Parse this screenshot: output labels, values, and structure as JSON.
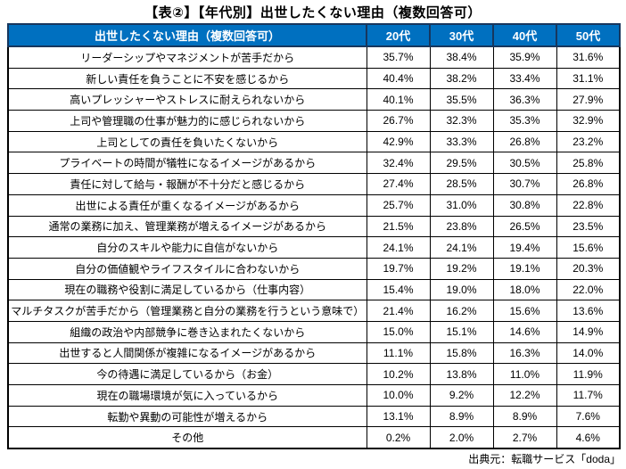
{
  "title": "【表②】【年代別】出世したくない理由（複数回答可）",
  "source": "出典元：転職サービス「doda」",
  "colors": {
    "header_bg": "#0070C0",
    "header_border": "#17375E",
    "header_text": "#FFFFFF",
    "body_border": "#000000",
    "body_text": "#000000"
  },
  "chart_data": {
    "type": "table",
    "title": "【表②】【年代別】出世したくない理由（複数回答可）",
    "header": [
      "出世したくない理由（複数回答可）",
      "20代",
      "30代",
      "40代",
      "50代"
    ],
    "rows": [
      [
        "リーダーシップやマネジメントが苦手だから",
        "35.7%",
        "38.4%",
        "35.9%",
        "31.6%"
      ],
      [
        "新しい責任を負うことに不安を感じるから",
        "40.4%",
        "38.2%",
        "33.4%",
        "31.1%"
      ],
      [
        "高いプレッシャーやストレスに耐えられないから",
        "40.1%",
        "35.5%",
        "36.3%",
        "27.9%"
      ],
      [
        "上司や管理職の仕事が魅力的に感じられないから",
        "26.7%",
        "32.3%",
        "35.3%",
        "32.9%"
      ],
      [
        "上司としての責任を負いたくないから",
        "42.9%",
        "33.3%",
        "26.8%",
        "23.2%"
      ],
      [
        "プライベートの時間が犠牲になるイメージがあるから",
        "32.4%",
        "29.5%",
        "30.5%",
        "25.8%"
      ],
      [
        "責任に対して給与・報酬が不十分だと感じるから",
        "27.4%",
        "28.5%",
        "30.7%",
        "26.8%"
      ],
      [
        "出世による責任が重くなるイメージがあるから",
        "25.7%",
        "31.0%",
        "30.8%",
        "22.8%"
      ],
      [
        "通常の業務に加え、管理業務が増えるイメージがあるから",
        "21.5%",
        "23.8%",
        "26.5%",
        "23.5%"
      ],
      [
        "自分のスキルや能力に自信がないから",
        "24.1%",
        "24.1%",
        "19.4%",
        "15.6%"
      ],
      [
        "自分の価値観やライフスタイルに合わないから",
        "19.7%",
        "19.2%",
        "19.1%",
        "20.3%"
      ],
      [
        "現在の職務や役割に満足しているから（仕事内容）",
        "15.4%",
        "19.0%",
        "18.0%",
        "22.0%"
      ],
      [
        "マルチタスクが苦手だから（管理業務と自分の業務を行うという意味で）",
        "21.4%",
        "16.2%",
        "15.6%",
        "13.6%"
      ],
      [
        "組織の政治や内部競争に巻き込まれたくないから",
        "15.0%",
        "15.1%",
        "14.6%",
        "14.9%"
      ],
      [
        "出世すると人間関係が複雑になるイメージがあるから",
        "11.1%",
        "15.8%",
        "16.3%",
        "14.0%"
      ],
      [
        "今の待遇に満足しているから（お金）",
        "10.2%",
        "13.8%",
        "11.0%",
        "11.9%"
      ],
      [
        "現在の職場環境が気に入っているから",
        "10.0%",
        "9.2%",
        "12.2%",
        "11.7%"
      ],
      [
        "転勤や異動の可能性が増えるから",
        "13.1%",
        "8.9%",
        "8.9%",
        "7.6%"
      ],
      [
        "その他",
        "0.2%",
        "2.0%",
        "2.7%",
        "4.6%"
      ]
    ]
  }
}
